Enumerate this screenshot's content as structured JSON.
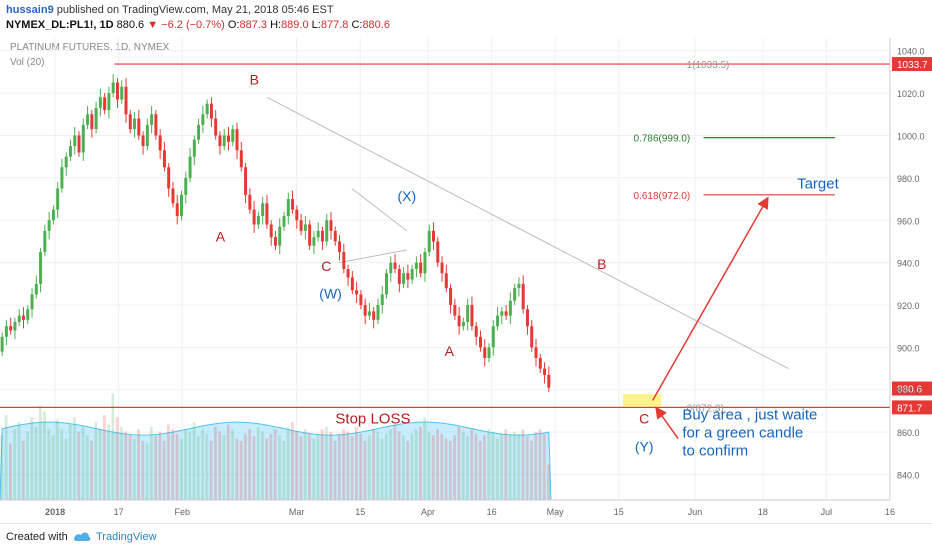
{
  "header": {
    "username": "hussain9",
    "published_text": "published on TradingView.com, May 21, 2018 05:46 EST",
    "symbol": "NYMEX_DL:PL1!, 1D",
    "last": "880.6",
    "change_arrow": "▼",
    "change": "−6.2 (−0.7%)",
    "o_label": "O:",
    "o_value": "887.3",
    "h_label": "H:",
    "h_value": "889.0",
    "l_label": "L:",
    "l_value": "877.8",
    "c_label": "C:",
    "c_value": "880.6"
  },
  "footer": {
    "created_with": "Created with",
    "brand": "TradingView"
  },
  "colors": {
    "up": "#4caf50",
    "down": "#e53935",
    "hline": "#e53935",
    "fib_786": "#2e7d32",
    "trendline": "#bdbdbd",
    "annot_red": "#b71c1c",
    "annot_blue": "#1565c0",
    "vol_area": "#81d4fa",
    "buy_zone": "#fff176"
  },
  "chart_data": {
    "type": "candlestick",
    "title": "PLATINUM FUTURES, 1D, NYMEX",
    "indicator_label": "Vol (20)",
    "ylim": [
      828,
      1046
    ],
    "xlim": [
      0,
      210
    ],
    "y_ticks": [
      840,
      860,
      880,
      900,
      920,
      940,
      960,
      980,
      1000,
      1020,
      1040
    ],
    "x_ticks": [
      {
        "x": 13,
        "label": "2018"
      },
      {
        "x": 28,
        "label": "17"
      },
      {
        "x": 43,
        "label": "Feb"
      },
      {
        "x": 70,
        "label": "Mar"
      },
      {
        "x": 85,
        "label": "15"
      },
      {
        "x": 101,
        "label": "Apr"
      },
      {
        "x": 116,
        "label": "16"
      },
      {
        "x": 131,
        "label": "May"
      },
      {
        "x": 146,
        "label": "15"
      },
      {
        "x": 164,
        "label": "Jun"
      },
      {
        "x": 180,
        "label": "18"
      },
      {
        "x": 195,
        "label": "Jul"
      },
      {
        "x": 210,
        "label": "16"
      }
    ],
    "closes": [
      905,
      910,
      908,
      912,
      915,
      913,
      918,
      925,
      930,
      945,
      955,
      960,
      965,
      975,
      985,
      990,
      995,
      1000,
      992,
      1005,
      1010,
      1003,
      1013,
      1018,
      1012,
      1020,
      1025,
      1017,
      1023,
      1010,
      1003,
      1008,
      1000,
      995,
      1005,
      1010,
      1000,
      993,
      985,
      975,
      968,
      962,
      972,
      980,
      990,
      998,
      1005,
      1010,
      1015,
      1008,
      1000,
      995,
      1000,
      997,
      1003,
      993,
      985,
      972,
      965,
      958,
      962,
      968,
      958,
      952,
      948,
      957,
      962,
      970,
      965,
      960,
      955,
      958,
      948,
      952,
      955,
      950,
      960,
      955,
      950,
      945,
      937,
      933,
      927,
      925,
      920,
      915,
      917,
      913,
      920,
      925,
      935,
      940,
      937,
      930,
      935,
      932,
      937,
      940,
      935,
      945,
      955,
      950,
      940,
      935,
      928,
      920,
      915,
      910,
      912,
      920,
      910,
      905,
      900,
      895,
      900,
      910,
      915,
      917,
      915,
      922,
      928,
      930,
      918,
      910,
      900,
      895,
      890,
      887,
      881
    ],
    "opens": [
      898,
      905,
      910,
      908,
      912,
      915,
      913,
      918,
      925,
      930,
      945,
      955,
      960,
      965,
      975,
      985,
      990,
      995,
      1000,
      992,
      1005,
      1010,
      1003,
      1013,
      1018,
      1012,
      1020,
      1025,
      1017,
      1023,
      1010,
      1003,
      1008,
      1000,
      995,
      1005,
      1010,
      1000,
      993,
      985,
      975,
      968,
      962,
      972,
      980,
      990,
      998,
      1005,
      1010,
      1015,
      1008,
      1000,
      995,
      1000,
      997,
      1003,
      993,
      985,
      972,
      965,
      958,
      962,
      968,
      958,
      952,
      948,
      957,
      962,
      970,
      965,
      960,
      955,
      958,
      948,
      952,
      955,
      950,
      960,
      955,
      950,
      945,
      937,
      933,
      927,
      925,
      920,
      915,
      917,
      913,
      920,
      925,
      935,
      940,
      937,
      930,
      935,
      932,
      937,
      940,
      935,
      945,
      955,
      950,
      940,
      935,
      928,
      920,
      915,
      910,
      912,
      920,
      910,
      905,
      900,
      895,
      900,
      910,
      915,
      917,
      915,
      922,
      928,
      930,
      918,
      910,
      900,
      895,
      890,
      887
    ],
    "volume_bars": [
      0.55,
      0.72,
      0.48,
      0.6,
      0.66,
      0.5,
      0.58,
      0.7,
      0.62,
      0.8,
      0.75,
      0.6,
      0.55,
      0.68,
      0.6,
      0.52,
      0.64,
      0.7,
      0.58,
      0.62,
      0.55,
      0.5,
      0.66,
      0.6,
      0.72,
      0.64,
      0.9,
      0.7,
      0.62,
      0.58,
      0.55,
      0.52,
      0.6,
      0.5,
      0.48,
      0.62,
      0.55,
      0.58,
      0.5,
      0.64,
      0.6,
      0.56,
      0.52,
      0.6,
      0.58,
      0.66,
      0.54,
      0.6,
      0.56,
      0.5,
      0.62,
      0.58,
      0.55,
      0.64,
      0.6,
      0.52,
      0.5,
      0.56,
      0.6,
      0.54,
      0.62,
      0.58,
      0.52,
      0.56,
      0.6,
      0.55,
      0.5,
      0.62,
      0.66,
      0.58,
      0.54,
      0.6,
      0.56,
      0.52,
      0.55,
      0.6,
      0.62,
      0.58,
      0.5,
      0.56,
      0.6,
      0.58,
      0.54,
      0.62,
      0.56,
      0.5,
      0.55,
      0.6,
      0.58,
      0.52,
      0.56,
      0.6,
      0.64,
      0.58,
      0.55,
      0.5,
      0.56,
      0.6,
      0.62,
      0.7,
      0.58,
      0.55,
      0.6,
      0.56,
      0.52,
      0.5,
      0.55,
      0.62,
      0.58,
      0.54,
      0.6,
      0.56,
      0.5,
      0.55,
      0.6,
      0.58,
      0.52,
      0.56,
      0.6,
      0.55,
      0.58,
      0.56,
      0.6,
      0.54,
      0.5,
      0.58,
      0.6,
      0.56,
      0.3
    ],
    "hlines": [
      {
        "value": 1033.7,
        "label": "1033.7",
        "fib_label": "1(1033.5)",
        "x_from": 27
      },
      {
        "value": 871.7,
        "label": "871.7",
        "fib_label": "0(872.3)",
        "x_from": 0
      }
    ],
    "fib_levels": [
      {
        "value": 999.0,
        "label": "0.786(999.0)",
        "x_from": 158,
        "x_to": 200
      },
      {
        "value": 972.0,
        "label": "0.618(972.0)",
        "x_from": 158,
        "x_to": 200
      }
    ],
    "last_price": {
      "value": 880.6,
      "label": "880.6"
    },
    "trendlines": [
      {
        "x1": 63,
        "y1": 1018,
        "x2": 186,
        "y2": 890
      },
      {
        "x1": 83,
        "y1": 975,
        "x2": 96,
        "y2": 955
      },
      {
        "x1": 80,
        "y1": 940,
        "x2": 96,
        "y2": 946
      }
    ],
    "annotations": [
      {
        "text": "B",
        "x": 60,
        "y": 1024,
        "color": "red"
      },
      {
        "text": "A",
        "x": 52,
        "y": 950,
        "color": "red"
      },
      {
        "text": "C",
        "x": 77,
        "y": 936,
        "color": "red"
      },
      {
        "text": "(W)",
        "x": 78,
        "y": 923,
        "color": "blue"
      },
      {
        "text": "(X)",
        "x": 96,
        "y": 969,
        "color": "blue"
      },
      {
        "text": "A",
        "x": 106,
        "y": 896,
        "color": "red"
      },
      {
        "text": "B",
        "x": 142,
        "y": 937,
        "color": "red"
      },
      {
        "text": "C",
        "x": 152,
        "y": 864,
        "color": "red"
      },
      {
        "text": "(Y)",
        "x": 152,
        "y": 851,
        "color": "blue"
      },
      {
        "text": "Target",
        "x": 193,
        "y": 975,
        "color": "blue",
        "size": 15
      },
      {
        "text": "Stop LOSS",
        "x": 88,
        "y": 864,
        "color": "red",
        "size": 15
      }
    ],
    "buy_note": [
      "Buy area , just waite",
      "for a green candle",
      "to confirm"
    ],
    "buy_zone": {
      "x1": 147,
      "x2": 156,
      "y1": 872,
      "y2": 878
    }
  }
}
